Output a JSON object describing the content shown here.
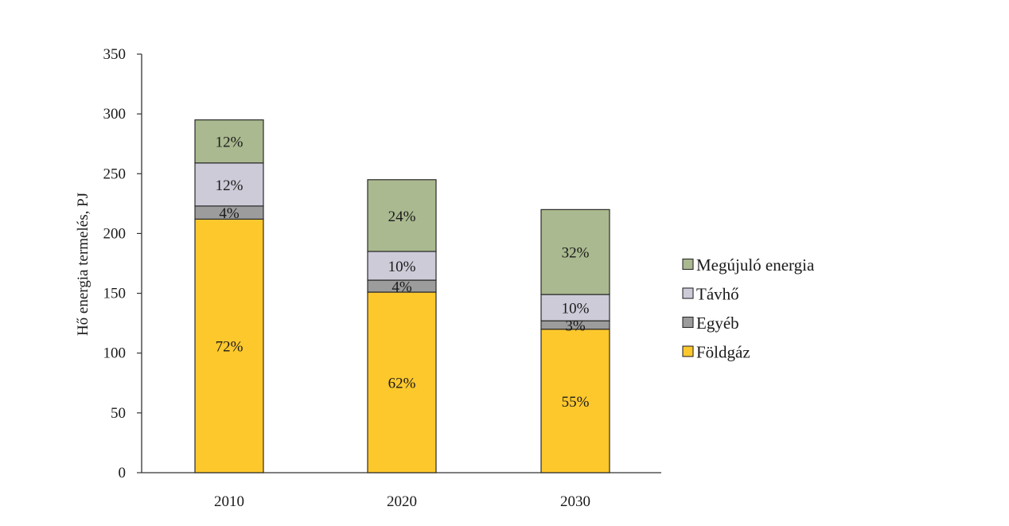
{
  "chart_data": {
    "type": "bar",
    "stacked": true,
    "ylabel": "Hő energia termelés, PJ",
    "xlabel": "",
    "ylim": [
      0,
      350
    ],
    "yticks": [
      0,
      50,
      100,
      150,
      200,
      250,
      300,
      350
    ],
    "categories": [
      "2010",
      "2020",
      "2030"
    ],
    "series": [
      {
        "name": "Földgáz",
        "color": "#fdc82c",
        "values": [
          212,
          151,
          120
        ],
        "labels": [
          "72%",
          "62%",
          "55%"
        ]
      },
      {
        "name": "Egyéb",
        "color": "#9c9c9c",
        "values": [
          11,
          10,
          7
        ],
        "labels": [
          "4%",
          "4%",
          "3%"
        ]
      },
      {
        "name": "Távhő",
        "color": "#cdcbd8",
        "values": [
          36,
          24,
          22
        ],
        "labels": [
          "12%",
          "10%",
          "10%"
        ]
      },
      {
        "name": "Megújuló energia",
        "color": "#aab98f",
        "values": [
          36,
          60,
          71
        ],
        "labels": [
          "12%",
          "24%",
          "32%"
        ]
      }
    ],
    "legend_order": [
      "Megújuló energia",
      "Távhő",
      "Egyéb",
      "Földgáz"
    ],
    "legend_position": "right",
    "grid": false
  }
}
